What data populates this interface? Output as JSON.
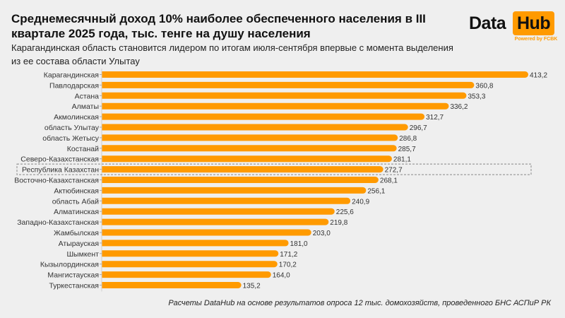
{
  "header": {
    "title": "Среднемесячный доход 10% наиболее обеспеченного населения в III квартале 2025 года, тыс. тенге на душу населения",
    "subtitle": "Карагандинская область становится лидером по итогам июля-сентября впервые с момента выделения из ее состава области Улытау"
  },
  "logo": {
    "word1": "Data",
    "word2": "Hub",
    "powered": "Powered by FCBK"
  },
  "footnote": "Расчеты DataHub на основе результатов опроса 12 тыс. домохозяйств, проведенного БНС АСПиР РК",
  "colors": {
    "bar": "#ff9a00",
    "background": "#efefef",
    "highlight_border": "#888888"
  },
  "chart_data": {
    "type": "bar",
    "orientation": "horizontal",
    "title": "Среднемесячный доход 10% наиболее обеспеченного населения в III квартале 2025 года, тыс. тенге на душу населения",
    "xlabel": "",
    "ylabel": "",
    "unit": "тыс. тенге",
    "grid": false,
    "legend": "none",
    "highlighted_category": "Республика Казахстан",
    "categories": [
      "Карагандинская",
      "Павлодарская",
      "Астана",
      "Алматы",
      "Акмолинская",
      "область Улытау",
      "область Жетысу",
      "Костанай",
      "Северо-Казахстанская",
      "Республика Казахстан",
      "Восточно-Казахстанская",
      "Актюбинская",
      "область Абай",
      "Алматинская",
      "Западно-Казахстанская",
      "Жамбылская",
      "Атырауская",
      "Шымкент",
      "Кызылординская",
      "Мангистауская",
      "Туркестанская"
    ],
    "values": [
      413.2,
      360.8,
      353.3,
      336.2,
      312.7,
      296.7,
      286.8,
      285.7,
      281.1,
      272.7,
      268.1,
      256.1,
      240.9,
      225.6,
      219.8,
      203.0,
      181.0,
      171.2,
      170.2,
      164.0,
      135.2
    ],
    "value_labels": [
      "413,2",
      "360,8",
      "353,3",
      "336,2",
      "312,7",
      "296,7",
      "286,8",
      "285,7",
      "281,1",
      "272,7",
      "268,1",
      "256,1",
      "240,9",
      "225,6",
      "219,8",
      "203,0",
      "181,0",
      "171,2",
      "170,2",
      "164,0",
      "135,2"
    ],
    "xlim": [
      0,
      413.2
    ]
  }
}
